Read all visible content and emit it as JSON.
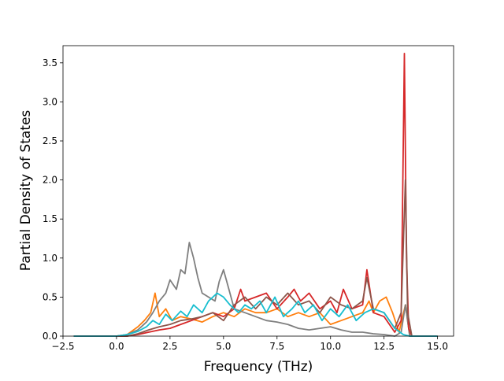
{
  "chart_data": {
    "type": "line",
    "title": "",
    "xlabel": "Frequency (THz)",
    "ylabel": "Partial Density of States",
    "xlim": [
      -2.5,
      15.75
    ],
    "ylim": [
      0.0,
      3.72
    ],
    "xticks": [
      -2.5,
      0.0,
      2.5,
      5.0,
      7.5,
      10.0,
      12.5,
      15.0
    ],
    "xtick_labels": [
      "−2.5",
      "0.0",
      "2.5",
      "5.0",
      "7.5",
      "10.0",
      "12.5",
      "15.0"
    ],
    "yticks": [
      0.0,
      0.5,
      1.0,
      1.5,
      2.0,
      2.5,
      3.0,
      3.5
    ],
    "ytick_labels": [
      "0.0",
      "0.5",
      "1.0",
      "1.5",
      "2.0",
      "2.5",
      "3.0",
      "3.5"
    ],
    "grid": false,
    "legend": "none",
    "series": [
      {
        "color": "#ff7f0e",
        "x": [
          -2.0,
          0.0,
          0.5,
          1.0,
          1.3,
          1.6,
          1.8,
          2.0,
          2.3,
          2.6,
          3.0,
          3.5,
          4.0,
          4.5,
          5.0,
          5.5,
          6.0,
          6.5,
          7.0,
          7.5,
          8.0,
          8.5,
          9.0,
          9.5,
          10.0,
          10.5,
          11.0,
          11.5,
          11.8,
          12.0,
          12.3,
          12.6,
          12.9,
          13.2,
          13.5,
          13.7,
          14.0,
          15.0
        ],
        "y": [
          0.0,
          0.0,
          0.02,
          0.12,
          0.2,
          0.3,
          0.55,
          0.25,
          0.35,
          0.2,
          0.25,
          0.22,
          0.18,
          0.25,
          0.3,
          0.25,
          0.35,
          0.3,
          0.3,
          0.35,
          0.25,
          0.3,
          0.25,
          0.3,
          0.15,
          0.2,
          0.25,
          0.3,
          0.45,
          0.3,
          0.45,
          0.5,
          0.3,
          0.05,
          0.4,
          0.0,
          0.0,
          0.0
        ]
      },
      {
        "color": "#7f7f7f",
        "x": [
          -2.0,
          0.0,
          0.5,
          1.0,
          1.4,
          1.7,
          2.0,
          2.3,
          2.5,
          2.8,
          3.0,
          3.2,
          3.4,
          3.6,
          3.8,
          4.0,
          4.3,
          4.6,
          4.8,
          5.0,
          5.2,
          5.5,
          6.0,
          6.5,
          7.0,
          7.5,
          8.0,
          8.5,
          9.0,
          9.5,
          10.0,
          10.5,
          11.0,
          11.5,
          12.0,
          12.5,
          13.0,
          13.3,
          13.5,
          13.7,
          15.0
        ],
        "y": [
          0.0,
          0.0,
          0.02,
          0.08,
          0.18,
          0.3,
          0.45,
          0.55,
          0.72,
          0.6,
          0.85,
          0.8,
          1.2,
          1.0,
          0.75,
          0.55,
          0.5,
          0.45,
          0.7,
          0.85,
          0.65,
          0.35,
          0.3,
          0.25,
          0.2,
          0.18,
          0.15,
          0.1,
          0.08,
          0.1,
          0.12,
          0.08,
          0.05,
          0.05,
          0.03,
          0.02,
          0.0,
          0.05,
          0.4,
          0.0,
          0.0
        ]
      },
      {
        "color": "#d62728",
        "x": [
          -2.0,
          0.0,
          0.5,
          1.0,
          1.5,
          2.0,
          2.5,
          3.0,
          3.5,
          4.0,
          4.5,
          5.0,
          5.5,
          5.8,
          6.0,
          6.5,
          7.0,
          7.5,
          8.0,
          8.3,
          8.6,
          9.0,
          9.5,
          10.0,
          10.3,
          10.6,
          11.0,
          11.5,
          11.7,
          12.0,
          12.5,
          13.0,
          13.3,
          13.45,
          13.55,
          13.65,
          13.8,
          15.0
        ],
        "y": [
          0.0,
          0.0,
          0.0,
          0.02,
          0.05,
          0.08,
          0.1,
          0.15,
          0.2,
          0.25,
          0.3,
          0.25,
          0.35,
          0.6,
          0.45,
          0.5,
          0.55,
          0.35,
          0.5,
          0.6,
          0.45,
          0.55,
          0.35,
          0.45,
          0.3,
          0.6,
          0.35,
          0.4,
          0.85,
          0.3,
          0.25,
          0.05,
          0.2,
          3.62,
          1.0,
          0.1,
          0.0,
          0.0
        ]
      },
      {
        "color": "#8c564b",
        "x": [
          -2.0,
          0.0,
          0.5,
          1.0,
          1.5,
          2.0,
          2.5,
          3.0,
          3.5,
          4.0,
          4.5,
          5.0,
          5.5,
          6.0,
          6.5,
          7.0,
          7.5,
          8.0,
          8.5,
          9.0,
          9.5,
          10.0,
          10.5,
          11.0,
          11.5,
          11.7,
          12.0,
          12.5,
          13.0,
          13.3,
          13.5,
          13.6,
          13.8,
          15.0
        ],
        "y": [
          0.0,
          0.0,
          0.0,
          0.03,
          0.08,
          0.12,
          0.15,
          0.2,
          0.22,
          0.25,
          0.3,
          0.2,
          0.4,
          0.5,
          0.35,
          0.5,
          0.4,
          0.55,
          0.4,
          0.45,
          0.3,
          0.5,
          0.4,
          0.35,
          0.45,
          0.75,
          0.35,
          0.3,
          0.1,
          0.3,
          2.0,
          0.3,
          0.0,
          0.0
        ]
      },
      {
        "color": "#17becf",
        "x": [
          -2.0,
          0.0,
          0.5,
          1.0,
          1.4,
          1.7,
          2.0,
          2.3,
          2.6,
          3.0,
          3.3,
          3.6,
          4.0,
          4.3,
          4.7,
          5.0,
          5.3,
          5.7,
          6.0,
          6.3,
          6.7,
          7.0,
          7.4,
          7.8,
          8.2,
          8.5,
          8.8,
          9.2,
          9.6,
          10.0,
          10.4,
          10.8,
          11.2,
          11.6,
          12.0,
          12.5,
          13.0,
          13.4,
          13.7,
          15.0
        ],
        "y": [
          0.0,
          0.0,
          0.02,
          0.06,
          0.12,
          0.2,
          0.15,
          0.28,
          0.2,
          0.32,
          0.25,
          0.4,
          0.3,
          0.45,
          0.55,
          0.5,
          0.4,
          0.3,
          0.4,
          0.35,
          0.45,
          0.3,
          0.5,
          0.25,
          0.35,
          0.45,
          0.3,
          0.4,
          0.2,
          0.35,
          0.25,
          0.4,
          0.2,
          0.3,
          0.35,
          0.3,
          0.1,
          0.02,
          0.0,
          0.0
        ]
      }
    ]
  }
}
